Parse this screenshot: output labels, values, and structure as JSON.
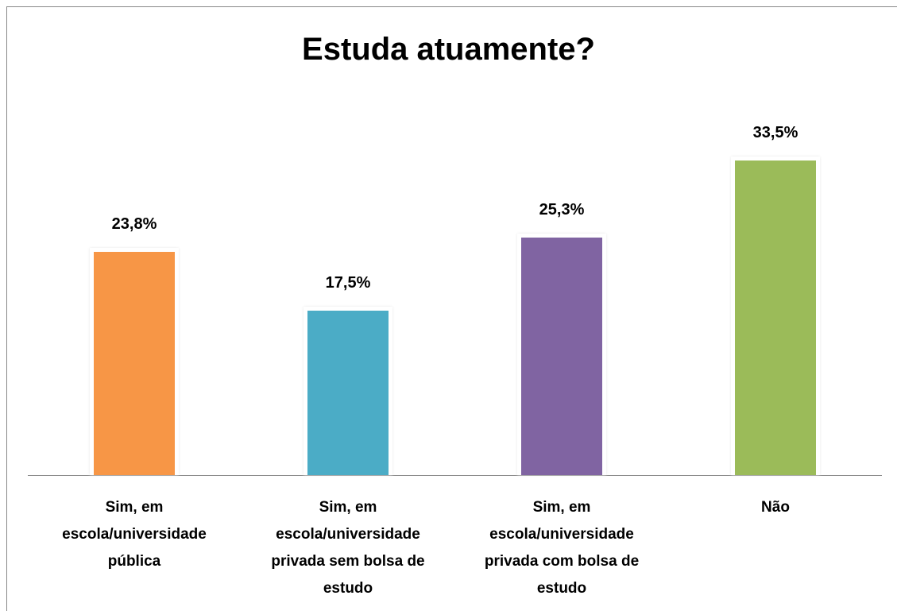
{
  "chart_data": {
    "type": "bar",
    "title": "Estuda atuamente?",
    "categories": [
      "Sim, em escola/universidade pública",
      "Sim, em escola/universidade privada sem bolsa de estudo",
      "Sim, em escola/universidade privada com bolsa de estudo",
      "Não"
    ],
    "values": [
      23.8,
      17.5,
      25.3,
      33.5
    ],
    "value_labels": [
      "23,8%",
      "17,5%",
      "25,3%",
      "33,5%"
    ],
    "colors": [
      "#f79646",
      "#4bacc6",
      "#8064a2",
      "#9bbb59"
    ]
  }
}
